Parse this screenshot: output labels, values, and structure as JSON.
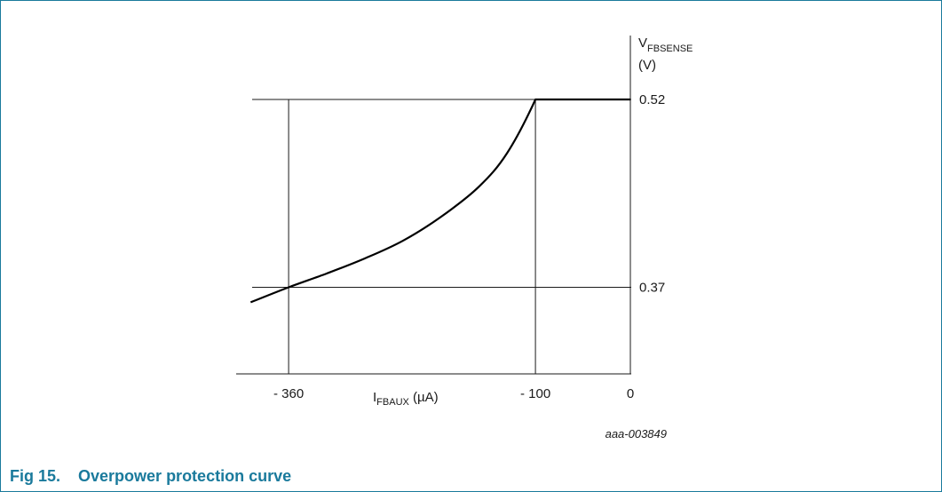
{
  "figure": {
    "number": "Fig 15.",
    "title": "Overpower protection curve",
    "reference": "aaa-003849",
    "caption_color": "#1a7a9c"
  },
  "chart_data": {
    "type": "line",
    "title": "Overpower protection curve",
    "x_axis": {
      "label_main": "I",
      "label_sub": "FBAUX",
      "label_unit": " (µA)",
      "range": [
        -460,
        0
      ],
      "tick_values": [
        -360,
        -100,
        0
      ],
      "tick_labels": [
        "- 360",
        "- 100",
        "0"
      ]
    },
    "y_axis": {
      "label_main": "V",
      "label_sub": "FBSENSE",
      "label_unit": "(V)",
      "range": [
        0.285,
        0.555
      ],
      "tick_values": [
        0.52,
        0.37
      ],
      "tick_labels": [
        "0.52",
        "0.37"
      ]
    },
    "reference_lines": {
      "x": [
        -360,
        -100
      ],
      "y": [
        0.52,
        0.37
      ]
    },
    "series": [
      {
        "points": [
          [
            -400,
            0.358
          ],
          [
            -360,
            0.37
          ],
          [
            -320,
            0.381
          ],
          [
            -280,
            0.393
          ],
          [
            -240,
            0.407
          ],
          [
            -200,
            0.426
          ],
          [
            -160,
            0.45
          ],
          [
            -130,
            0.477
          ],
          [
            -100,
            0.52
          ],
          [
            0,
            0.52
          ]
        ]
      }
    ],
    "grid": false
  }
}
